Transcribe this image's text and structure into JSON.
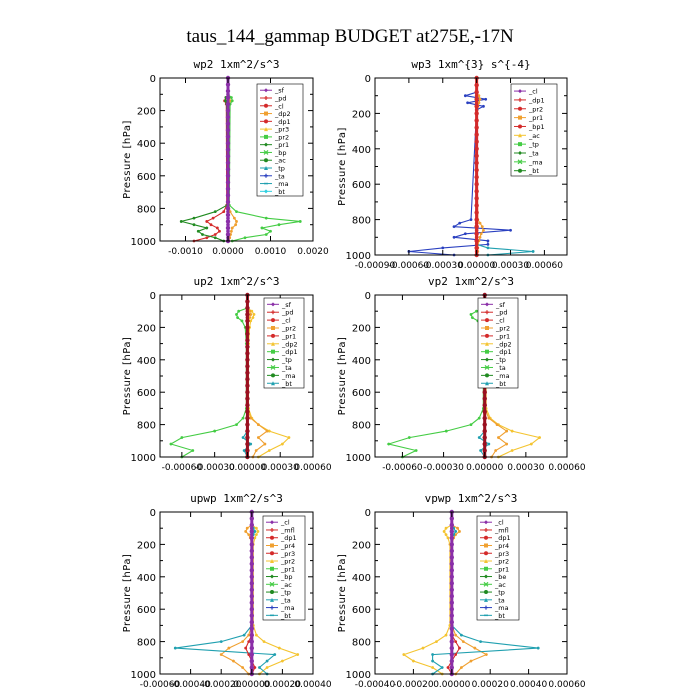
{
  "figure_title": "taus_144_gammap  BUDGET at275E,-17N",
  "colors": {
    "purple": "#8b2fa8",
    "red": "#d42a2a",
    "darkred": "#9a1020",
    "orange": "#f0a030",
    "yellow": "#f4c430",
    "green": "#44cc44",
    "darkgreen": "#208a20",
    "blue": "#2a40c0",
    "teal": "#20a0b0",
    "cyan": "#30d0e0",
    "gray": "#555555"
  },
  "chart_data": [
    {
      "type": "line",
      "title": "wp2   1xm^2/s^3",
      "ylabel": "Pressure  [hPa]",
      "ylim": [
        1000,
        0
      ],
      "xlim": [
        -0.0016,
        0.002
      ],
      "xticks": [
        -0.001,
        0,
        0.001,
        0.002
      ],
      "xtick_labels": [
        "-0.0010",
        "0.0000",
        "0.0010",
        "0.0020"
      ],
      "yticks": [
        0,
        200,
        400,
        600,
        800,
        1000
      ],
      "ytick_labels": [
        "0",
        "200",
        "400",
        "600",
        "800",
        "1000"
      ],
      "legend_position": "top-right",
      "levels": [
        100,
        120,
        140,
        160,
        780,
        820,
        860,
        880,
        900,
        920,
        940,
        960,
        980,
        1000
      ],
      "series": [
        {
          "name": "_sf",
          "color": "#8b2fa8",
          "values": [
            0,
            0,
            0,
            0,
            0,
            0,
            0,
            0,
            0,
            0,
            0,
            0,
            0,
            0
          ]
        },
        {
          "name": "_pd",
          "color": "#d42a2a",
          "values": [
            0,
            -5e-05,
            -8e-05,
            -4e-05,
            -3e-05,
            -0.0001,
            -0.00035,
            -0.0005,
            -0.0004,
            -0.00025,
            -0.0002,
            -0.0003,
            -0.0005,
            -0.0008
          ]
        },
        {
          "name": "_cl",
          "color": "#f0a030",
          "values": [
            0,
            3e-05,
            5e-05,
            2e-05,
            2e-05,
            5e-05,
            0.00015,
            0.0002,
            0.00018,
            0.0001,
            8e-05,
            6e-05,
            4e-05,
            2e-05
          ]
        },
        {
          "name": "_pr2",
          "color": "#44cc44",
          "values": [
            0,
            8e-05,
            0.0001,
            5e-05,
            3e-05,
            0.0002,
            0.0009,
            0.0017,
            0.0012,
            0.0008,
            0.001,
            0.0009,
            0.0004,
            0.0001
          ]
        },
        {
          "name": "_pr1",
          "color": "#208a20",
          "values": [
            0,
            -5e-05,
            -6e-05,
            -3e-05,
            -2e-05,
            -0.0003,
            -0.0008,
            -0.0011,
            -0.0008,
            -0.0005,
            -0.0007,
            -0.0006,
            -0.0003,
            -0.0001
          ]
        }
      ],
      "legend": [
        "_sf",
        "_pd",
        "_cl",
        "_dp2",
        "_dp1",
        "_pr3",
        "_pr2",
        "_pr1",
        "_bp",
        "_ac",
        "_tp",
        "_ta",
        "_ma",
        "_bt"
      ]
    },
    {
      "type": "line",
      "title": "wp3   1xm^{3} s^{-4}",
      "ylabel": "Pressure  [hPa]",
      "ylim": [
        1000,
        0
      ],
      "xlim": [
        -0.0009,
        0.0008
      ],
      "xticks": [
        -0.0009,
        -0.0006,
        -0.0003,
        0,
        0.0003,
        0.0006
      ],
      "xtick_labels": [
        "-0.00090",
        "-0.00060",
        "-0.00030",
        "0.00000",
        "0.00030",
        "0.00060"
      ],
      "yticks": [
        0,
        200,
        400,
        600,
        800,
        1000
      ],
      "ytick_labels": [
        "0",
        "200",
        "400",
        "600",
        "800",
        "1000"
      ],
      "legend_position": "top-right",
      "levels": [
        80,
        100,
        120,
        140,
        160,
        180,
        800,
        820,
        840,
        860,
        880,
        900,
        920,
        940,
        960,
        980,
        1000
      ],
      "series": [
        {
          "name": "_cl",
          "color": "#d42a2a",
          "values": [
            0,
            0,
            0,
            0,
            0,
            0,
            0,
            0,
            0,
            0,
            0,
            0,
            0,
            0,
            0,
            0,
            0
          ]
        },
        {
          "name": "_ta",
          "color": "#2a40c0",
          "values": [
            0,
            -0.0001,
            8e-05,
            -8e-05,
            6e-05,
            0,
            -5e-05,
            -0.00015,
            -0.0002,
            0.0003,
            -0.0001,
            -0.0002,
            0.0001,
            0.0001,
            -0.0003,
            -0.0006,
            -0.0002
          ]
        },
        {
          "name": "_pr2",
          "color": "#f0a030",
          "values": [
            0,
            2e-05,
            3e-05,
            2e-05,
            1e-05,
            0,
            1e-05,
            3e-05,
            5e-05,
            6e-05,
            4e-05,
            3e-05,
            2e-05,
            1e-05,
            1e-05,
            1e-05,
            0
          ]
        },
        {
          "name": "_tp",
          "color": "#20a0b0",
          "values": [
            0,
            0,
            0,
            0,
            0,
            0,
            0,
            0,
            0,
            0,
            0,
            0,
            0,
            0,
            0.0001,
            0.0005,
            0.0001
          ]
        }
      ],
      "legend": [
        "_cl",
        "_dp1",
        "_pr2",
        "_pr1",
        "_bp1",
        "_ac",
        "_tp",
        "_ta",
        "_ma",
        "_bt"
      ]
    },
    {
      "type": "line",
      "title": "up2   1xm^2/s^3",
      "ylabel": "Pressure  [hPa]",
      "ylim": [
        1000,
        0
      ],
      "xlim": [
        -0.0008,
        0.0006
      ],
      "xticks": [
        -0.0006,
        -0.0003,
        0,
        0.0003,
        0.0006
      ],
      "xtick_labels": [
        "-0.00060",
        "-0.00030",
        "0.00000",
        "0.00030",
        "0.00060"
      ],
      "yticks": [
        0,
        200,
        400,
        600,
        800,
        1000
      ],
      "ytick_labels": [
        "0",
        "200",
        "400",
        "600",
        "800",
        "1000"
      ],
      "legend_position": "right",
      "levels": [
        80,
        100,
        120,
        140,
        160,
        200,
        300,
        700,
        760,
        800,
        840,
        880,
        920,
        960,
        1000
      ],
      "series": [
        {
          "name": "_sf",
          "color": "#9a1020",
          "values": [
            0,
            0,
            0,
            0,
            0,
            0,
            0,
            0,
            0,
            0,
            0,
            0,
            0,
            0,
            0
          ]
        },
        {
          "name": "_pr1",
          "color": "#44cc44",
          "values": [
            0,
            -8e-05,
            -0.0001,
            -9e-05,
            -5e-05,
            -2e-05,
            -1e-05,
            -1e-05,
            -4e-05,
            -0.0001,
            -0.0003,
            -0.0006,
            -0.0007,
            -0.0005,
            -0.0006
          ]
        },
        {
          "name": "_pr2",
          "color": "#f4c430",
          "values": [
            0,
            4e-05,
            6e-05,
            5e-05,
            3e-05,
            2e-05,
            1e-05,
            1e-05,
            4e-05,
            0.0001,
            0.0002,
            0.00038,
            0.00032,
            0.0002,
            0.0001
          ]
        },
        {
          "name": "_cl",
          "color": "#f0a030",
          "values": [
            0,
            2e-05,
            3e-05,
            2e-05,
            1e-05,
            0,
            0,
            0,
            3e-05,
            0.0001,
            0.00018,
            0.0001,
            0.00016,
            8e-05,
            5e-05
          ]
        },
        {
          "name": "_tp",
          "color": "#20a0b0",
          "values": [
            0,
            0,
            0,
            0,
            0,
            0,
            0,
            0,
            0,
            0,
            0,
            -4e-05,
            3e-05,
            -3e-05,
            0
          ]
        }
      ],
      "legend": [
        "_sf",
        "_pd",
        "_cl",
        "_pr2",
        "_pr1",
        "_dp2",
        "_dp1",
        "_tp",
        "_ta",
        "_ma",
        "_bt"
      ]
    },
    {
      "type": "line",
      "title": "vp2   1xm^2/s^3",
      "ylabel": "Pressure  [hPa]",
      "ylim": [
        1000,
        0
      ],
      "xlim": [
        -0.0008,
        0.0006
      ],
      "xticks": [
        -0.0006,
        -0.0003,
        0,
        0.0003,
        0.0006
      ],
      "xtick_labels": [
        "-0.00060",
        "-0.00030",
        "0.00000",
        "0.00030",
        "0.00060"
      ],
      "yticks": [
        0,
        200,
        400,
        600,
        800,
        1000
      ],
      "ytick_labels": [
        "0",
        "200",
        "400",
        "600",
        "800",
        "1000"
      ],
      "legend_position": "right",
      "levels": [
        80,
        100,
        120,
        140,
        160,
        200,
        300,
        700,
        760,
        800,
        840,
        880,
        920,
        960,
        1000
      ],
      "series": [
        {
          "name": "_sf",
          "color": "#9a1020",
          "values": [
            0,
            0,
            0,
            0,
            0,
            0,
            0,
            0,
            0,
            0,
            0,
            0,
            0,
            0,
            0
          ]
        },
        {
          "name": "_pr1",
          "color": "#44cc44",
          "values": [
            0,
            -6e-05,
            -0.0001,
            -9e-05,
            -5e-05,
            -2e-05,
            -1e-05,
            -1e-05,
            -4e-05,
            -0.0001,
            -0.00028,
            -0.00055,
            -0.0007,
            -0.0005,
            -0.0006
          ]
        },
        {
          "name": "_pr2",
          "color": "#f4c430",
          "values": [
            0,
            3e-05,
            5e-05,
            4e-05,
            3e-05,
            2e-05,
            1e-05,
            1e-05,
            4e-05,
            0.0001,
            0.0002,
            0.0004,
            0.00034,
            0.0002,
            0.0001
          ]
        },
        {
          "name": "_cl",
          "color": "#f0a030",
          "values": [
            0,
            2e-05,
            3e-05,
            2e-05,
            1e-05,
            0,
            0,
            0,
            3e-05,
            9e-05,
            0.00016,
            0.0001,
            0.00016,
            8e-05,
            5e-05
          ]
        },
        {
          "name": "_tp",
          "color": "#20a0b0",
          "values": [
            0,
            0,
            0,
            0,
            0,
            0,
            0,
            0,
            0,
            0,
            0,
            -4e-05,
            3e-05,
            -3e-05,
            0
          ]
        }
      ],
      "legend": [
        "_sf",
        "_pd",
        "_cl",
        "_pr2",
        "_pr1",
        "_dp2",
        "_dp1",
        "_tp",
        "_ta",
        "_ma",
        "_bt"
      ]
    },
    {
      "type": "line",
      "title": "upwp   1xm^2/s^3",
      "ylabel": "Pressure  [hPa]",
      "ylim": [
        1000,
        0
      ],
      "xlim": [
        -0.0006,
        0.0004
      ],
      "xticks": [
        -0.0006,
        -0.0004,
        -0.0002,
        0,
        0.0002,
        0.0004
      ],
      "xtick_labels": [
        "-0.00060",
        "-0.00040",
        "-0.00020",
        "0.00000",
        "0.00020",
        "0.00040"
      ],
      "yticks": [
        0,
        200,
        400,
        600,
        800,
        1000
      ],
      "ytick_labels": [
        "0",
        "200",
        "400",
        "600",
        "800",
        "1000"
      ],
      "legend_position": "right",
      "levels": [
        80,
        100,
        120,
        140,
        160,
        200,
        700,
        760,
        800,
        840,
        880,
        920,
        960,
        1000
      ],
      "series": [
        {
          "name": "_cl",
          "color": "#8b2fa8",
          "values": [
            0,
            0,
            0,
            0,
            0,
            0,
            0,
            0,
            0,
            0,
            0,
            0,
            0,
            0
          ]
        },
        {
          "name": "_pr2",
          "color": "#f4c430",
          "values": [
            0,
            3e-05,
            4e-05,
            3e-05,
            2e-05,
            1e-05,
            1e-05,
            3e-05,
            8e-05,
            0.00018,
            0.0003,
            0.0002,
            0.0001,
            5e-05
          ]
        },
        {
          "name": "_pr1",
          "color": "#f0a030",
          "values": [
            0,
            -3e-05,
            -4e-05,
            -2e-05,
            -1e-05,
            0,
            0,
            -2e-05,
            -6e-05,
            -0.00015,
            -0.0002,
            -0.00012,
            -6e-05,
            -2e-05
          ]
        },
        {
          "name": "_ta",
          "color": "#20a0b0",
          "values": [
            0,
            1e-05,
            2e-05,
            1e-05,
            0,
            0,
            0,
            -5e-05,
            -0.0002,
            -0.0005,
            0.00015,
            0.0001,
            5e-05,
            0.0001
          ]
        },
        {
          "name": "_dp1",
          "color": "#d42a2a",
          "values": [
            0,
            0,
            0,
            0,
            0,
            0,
            0,
            0,
            -2e-05,
            -4e-05,
            -2e-05,
            0,
            2e-05,
            0
          ]
        }
      ],
      "legend": [
        "_cl",
        "_mfl",
        "_dp1",
        "_pr4",
        "_pr3",
        "_pr2",
        "_pr1",
        "_bp",
        "_ac",
        "_tp",
        "_ta",
        "_ma",
        "_bt"
      ]
    },
    {
      "type": "line",
      "title": "vpwp   1xm^2/s^3",
      "ylabel": "Pressure  [hPa]",
      "ylim": [
        1000,
        0
      ],
      "xlim": [
        -0.0004,
        0.0006
      ],
      "xticks": [
        -0.0004,
        -0.0002,
        0,
        0.0002,
        0.0004,
        0.0006
      ],
      "xtick_labels": [
        "-0.00040",
        "-0.00020",
        "0.00000",
        "0.00020",
        "0.00040",
        "0.00060"
      ],
      "yticks": [
        0,
        200,
        400,
        600,
        800,
        1000
      ],
      "ytick_labels": [
        "0",
        "200",
        "400",
        "600",
        "800",
        "1000"
      ],
      "legend_position": "right",
      "levels": [
        80,
        100,
        120,
        140,
        160,
        200,
        700,
        760,
        800,
        840,
        880,
        920,
        960,
        1000
      ],
      "series": [
        {
          "name": "_cl",
          "color": "#8b2fa8",
          "values": [
            0,
            0,
            0,
            0,
            0,
            0,
            0,
            0,
            0,
            0,
            0,
            0,
            0,
            0
          ]
        },
        {
          "name": "_pr2",
          "color": "#f4c430",
          "values": [
            0,
            -3e-05,
            -4e-05,
            -3e-05,
            -2e-05,
            -1e-05,
            -1e-05,
            -3e-05,
            -8e-05,
            -0.00015,
            -0.00025,
            -0.0002,
            -0.0001,
            -5e-05
          ]
        },
        {
          "name": "_pr1",
          "color": "#f0a030",
          "values": [
            0,
            3e-05,
            4e-05,
            2e-05,
            1e-05,
            0,
            0,
            2e-05,
            6e-05,
            0.00012,
            0.00018,
            0.0001,
            5e-05,
            2e-05
          ]
        },
        {
          "name": "_ta",
          "color": "#20a0b0",
          "values": [
            0,
            1e-05,
            2e-05,
            1e-05,
            0,
            0,
            0,
            5e-05,
            0.00015,
            0.00045,
            -0.0001,
            -0.0001,
            -5e-05,
            -0.0001
          ]
        },
        {
          "name": "_dp1",
          "color": "#d42a2a",
          "values": [
            0,
            0,
            0,
            0,
            0,
            0,
            0,
            0,
            2e-05,
            4e-05,
            2e-05,
            0,
            -2e-05,
            0
          ]
        }
      ],
      "legend": [
        "_cl",
        "_mfl",
        "_dp1",
        "_pr4",
        "_pr3",
        "_pr2",
        "_pr1",
        "_be",
        "_ac",
        "_tp",
        "_ta",
        "_ma",
        "_bt"
      ]
    }
  ]
}
